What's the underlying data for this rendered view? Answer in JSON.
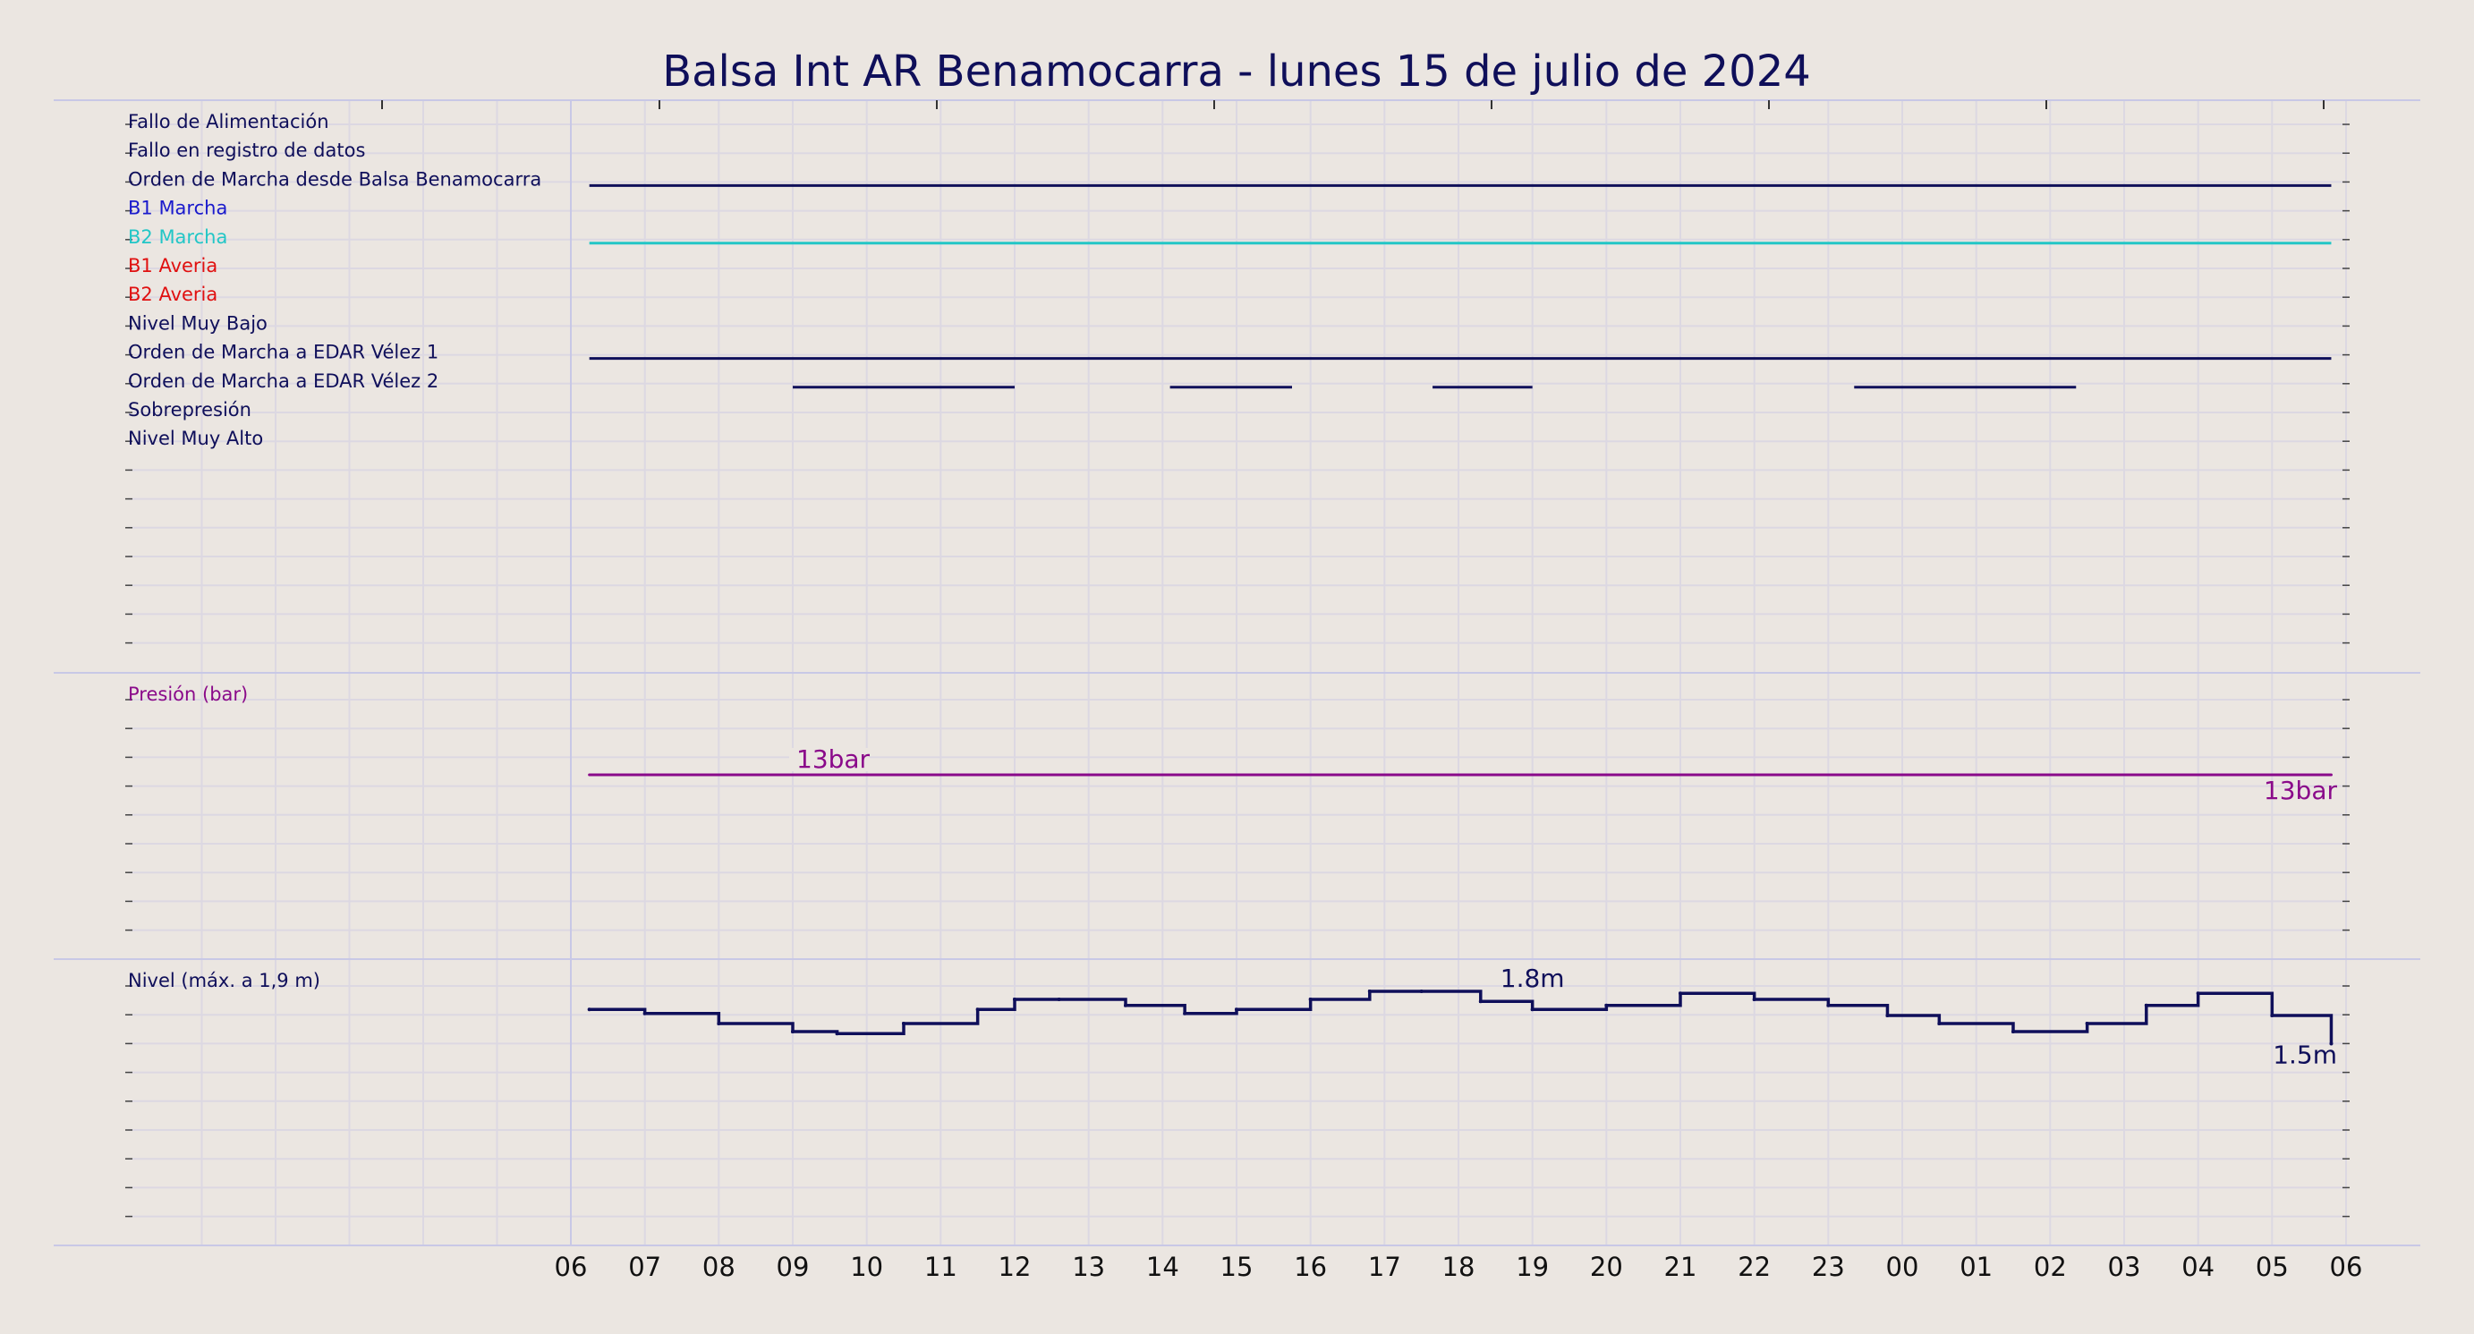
{
  "title": "Balsa Int AR Benamocarra   -   lunes 15 de julio de 2024",
  "colors": {
    "background": "#ebe6e1",
    "navy": "#0f0f5a",
    "blue": "#1a1acc",
    "cyan": "#22c6c6",
    "red": "#e01010",
    "purple": "#8a0a8a",
    "grid": "#dcd8e2",
    "separator": "#c8c8e6"
  },
  "x_ticks": [
    "06",
    "07",
    "08",
    "09",
    "10",
    "11",
    "12",
    "13",
    "14",
    "15",
    "16",
    "17",
    "18",
    "19",
    "20",
    "21",
    "22",
    "23",
    "00",
    "01",
    "02",
    "03",
    "04",
    "05",
    "06"
  ],
  "chart_data": [
    {
      "type": "line",
      "panel": "signals",
      "x_unit": "hours since 06:00",
      "x_range": [
        0,
        24
      ],
      "signals": [
        {
          "name": "Fallo de Alimentación",
          "color": "#0f0f5a",
          "on": []
        },
        {
          "name": "Fallo en registro de datos",
          "color": "#0f0f5a",
          "on": []
        },
        {
          "name": "Orden de Marcha desde Balsa Benamocarra",
          "color": "#0f0f5a",
          "on": [
            [
              0.25,
              23.8
            ]
          ]
        },
        {
          "name": "B1 Marcha",
          "color": "#1a1acc",
          "on": []
        },
        {
          "name": "B2 Marcha",
          "color": "#22c6c6",
          "on": [
            [
              0.25,
              23.8
            ]
          ]
        },
        {
          "name": "B1 Averia",
          "color": "#e01010",
          "on": []
        },
        {
          "name": "B2 Averia",
          "color": "#e01010",
          "on": []
        },
        {
          "name": "Nivel Muy Bajo",
          "color": "#0f0f5a",
          "on": []
        },
        {
          "name": "Orden de Marcha a EDAR Vélez 1",
          "color": "#0f0f5a",
          "on": [
            [
              0.25,
              23.8
            ]
          ]
        },
        {
          "name": "Orden de Marcha a EDAR Vélez 2",
          "color": "#0f0f5a",
          "on": [
            [
              3.0,
              6.0
            ],
            [
              8.1,
              9.75
            ],
            [
              11.65,
              13.0
            ],
            [
              17.35,
              20.35
            ]
          ]
        },
        {
          "name": "Sobrepresión",
          "color": "#0f0f5a",
          "on": []
        },
        {
          "name": "Nivel Muy Alto",
          "color": "#0f0f5a",
          "on": []
        }
      ]
    },
    {
      "type": "line",
      "panel": "pressure",
      "ylabel": "Presión (bar)",
      "unit": "bar",
      "color": "#8a0a8a",
      "x_range": [
        0,
        24
      ],
      "x": [
        0.25,
        1.5,
        2.5,
        3.5,
        7.5,
        8.3,
        14.0,
        20.5,
        23.8
      ],
      "y": [
        13,
        13,
        13,
        13,
        13,
        13,
        13,
        13,
        13
      ],
      "annotations": [
        {
          "x": 3.0,
          "y": 13,
          "text": "13bar"
        },
        {
          "x": 24,
          "y": 13,
          "text": "13bar"
        }
      ]
    },
    {
      "type": "line",
      "panel": "level",
      "ylabel": "Nivel (máx. a 1,9 m)",
      "unit": "m",
      "color": "#0f0f5a",
      "x_range": [
        0,
        24
      ],
      "x": [
        0.25,
        1.0,
        2.0,
        3.0,
        3.6,
        4.5,
        5.5,
        6.0,
        6.6,
        7.5,
        8.3,
        9.0,
        10.0,
        10.8,
        11.5,
        12.3,
        13.0,
        14.0,
        15.0,
        16.0,
        17.0,
        17.8,
        18.5,
        19.5,
        20.5,
        21.3,
        22.0,
        23.0,
        23.8
      ],
      "y": [
        1.67,
        1.65,
        1.6,
        1.56,
        1.55,
        1.6,
        1.67,
        1.72,
        1.72,
        1.69,
        1.65,
        1.67,
        1.72,
        1.76,
        1.76,
        1.71,
        1.67,
        1.69,
        1.75,
        1.72,
        1.69,
        1.64,
        1.6,
        1.56,
        1.6,
        1.69,
        1.75,
        1.64,
        1.5
      ],
      "annotations": [
        {
          "x": 13.0,
          "y": 1.8,
          "text": "1.8m"
        },
        {
          "x": 24,
          "y": 1.5,
          "text": "1.5m"
        }
      ]
    }
  ]
}
